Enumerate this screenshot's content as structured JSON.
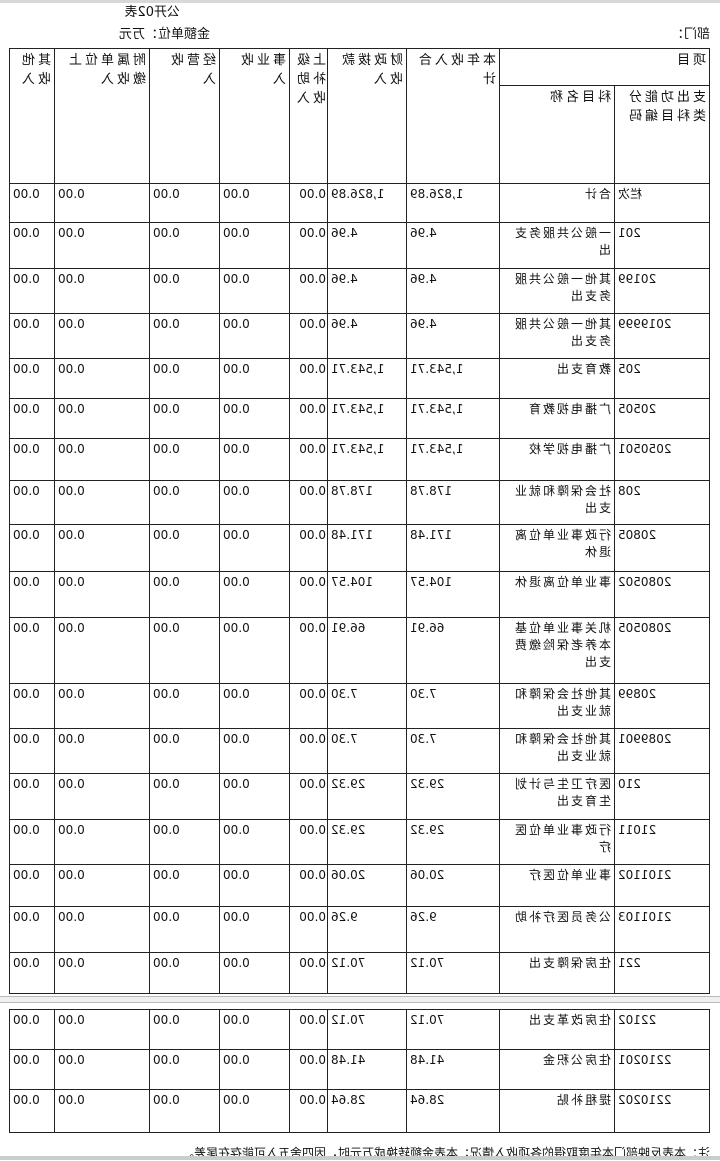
{
  "form_id": "公开02表",
  "unit": "金额单位：万元",
  "dept_label": "部门：",
  "headers": {
    "project": "项目",
    "code": "支出功能分类科目编码",
    "name": "科目名称",
    "total": "本年收入合计",
    "fiscal": "财政拨款收入",
    "superior": "上级补助收入",
    "business": "事业收入",
    "operating": "经营收入",
    "affiliated": "附属单位上缴收入",
    "other": "其他收入"
  },
  "rows": [
    {
      "code": "栏次",
      "name": "合计",
      "total": "1,826.89",
      "fiscal": "1,826.89",
      "superior": "0.00",
      "business": "0.00",
      "operating": "0.00",
      "affiliated": "0.00",
      "other": "0.00"
    },
    {
      "code": "201",
      "name": "一般公共服务支出",
      "total": "4.96",
      "fiscal": "4.96",
      "superior": "0.00",
      "business": "0.00",
      "operating": "0.00",
      "affiliated": "0.00",
      "other": "0.00"
    },
    {
      "code": "20199",
      "name": "其他一般公共服务支出",
      "total": "4.96",
      "fiscal": "4.96",
      "superior": "0.00",
      "business": "0.00",
      "operating": "0.00",
      "affiliated": "0.00",
      "other": "0.00"
    },
    {
      "code": "2019999",
      "name": "其他一般公共服务支出",
      "total": "4.96",
      "fiscal": "4.96",
      "superior": "0.00",
      "business": "0.00",
      "operating": "0.00",
      "affiliated": "0.00",
      "other": "0.00"
    },
    {
      "code": "205",
      "name": "教育支出",
      "total": "1,543.71",
      "fiscal": "1,543.71",
      "superior": "0.00",
      "business": "0.00",
      "operating": "0.00",
      "affiliated": "0.00",
      "other": "0.00"
    },
    {
      "code": "20505",
      "name": "广播电视教育",
      "total": "1,543.71",
      "fiscal": "1,543.71",
      "superior": "0.00",
      "business": "0.00",
      "operating": "0.00",
      "affiliated": "0.00",
      "other": "0.00"
    },
    {
      "code": "2050501",
      "name": "广播电视学校",
      "total": "1,543.71",
      "fiscal": "1,543.71",
      "superior": "0.00",
      "business": "0.00",
      "operating": "0.00",
      "affiliated": "0.00",
      "other": "0.00"
    },
    {
      "code": "208",
      "name": "社会保障和就业支出",
      "total": "178.78",
      "fiscal": "178.78",
      "superior": "0.00",
      "business": "0.00",
      "operating": "0.00",
      "affiliated": "0.00",
      "other": "0.00"
    },
    {
      "code": "20805",
      "name": "行政事业单位离退休",
      "total": "171.48",
      "fiscal": "171.48",
      "superior": "0.00",
      "business": "0.00",
      "operating": "0.00",
      "affiliated": "0.00",
      "other": "0.00"
    },
    {
      "code": "2080502",
      "name": "事业单位离退休",
      "total": "104.57",
      "fiscal": "104.57",
      "superior": "0.00",
      "business": "0.00",
      "operating": "0.00",
      "affiliated": "0.00",
      "other": "0.00"
    },
    {
      "code": "2080505",
      "name": "机关事业单位基本养老保险缴费支出",
      "total": "66.91",
      "fiscal": "66.91",
      "superior": "0.00",
      "business": "0.00",
      "operating": "0.00",
      "affiliated": "0.00",
      "other": "0.00"
    },
    {
      "code": "20899",
      "name": "其他社会保障和就业支出",
      "total": "7.30",
      "fiscal": "7.30",
      "superior": "0.00",
      "business": "0.00",
      "operating": "0.00",
      "affiliated": "0.00",
      "other": "0.00"
    },
    {
      "code": "2089901",
      "name": "其他社会保障和就业支出",
      "total": "7.30",
      "fiscal": "7.30",
      "superior": "0.00",
      "business": "0.00",
      "operating": "0.00",
      "affiliated": "0.00",
      "other": "0.00"
    },
    {
      "code": "210",
      "name": "医疗卫生与计划生育支出",
      "total": "29.32",
      "fiscal": "29.32",
      "superior": "0.00",
      "business": "0.00",
      "operating": "0.00",
      "affiliated": "0.00",
      "other": "0.00"
    },
    {
      "code": "21011",
      "name": "行政事业单位医疗",
      "total": "29.32",
      "fiscal": "29.32",
      "superior": "0.00",
      "business": "0.00",
      "operating": "0.00",
      "affiliated": "0.00",
      "other": "0.00"
    },
    {
      "code": "2101102",
      "name": "事业单位医疗",
      "total": "20.06",
      "fiscal": "20.06",
      "superior": "0.00",
      "business": "0.00",
      "operating": "0.00",
      "affiliated": "0.00",
      "other": "0.00"
    },
    {
      "code": "2101103",
      "name": "公务员医疗补助",
      "total": "9.26",
      "fiscal": "9.26",
      "superior": "0.00",
      "business": "0.00",
      "operating": "0.00",
      "affiliated": "0.00",
      "other": "0.00"
    },
    {
      "code": "221",
      "name": "住房保障支出",
      "total": "70.12",
      "fiscal": "70.12",
      "superior": "0.00",
      "business": "0.00",
      "operating": "0.00",
      "affiliated": "0.00",
      "other": "0.00"
    }
  ],
  "rows2": [
    {
      "code": "22102",
      "name": "住房改革支出",
      "total": "70.12",
      "fiscal": "70.12",
      "superior": "0.00",
      "business": "0.00",
      "operating": "0.00",
      "affiliated": "0.00",
      "other": "0.00"
    },
    {
      "code": "2210201",
      "name": "住房公积金",
      "total": "41.48",
      "fiscal": "41.48",
      "superior": "0.00",
      "business": "0.00",
      "operating": "0.00",
      "affiliated": "0.00",
      "other": "0.00"
    },
    {
      "code": "2210202",
      "name": "提租补贴",
      "total": "28.64",
      "fiscal": "28.64",
      "superior": "0.00",
      "business": "0.00",
      "operating": "0.00",
      "affiliated": "0.00",
      "other": "0.00"
    }
  ],
  "note": "注：本表反映部门本年度取得的各项收入情况；本表金额转换成万元时，因四舍五入可能存在尾差。"
}
